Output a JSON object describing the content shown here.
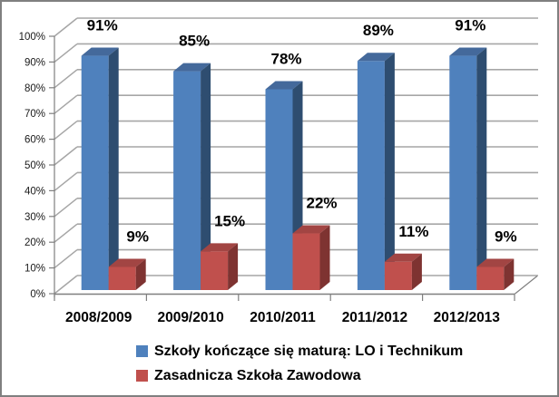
{
  "chart_data": {
    "type": "bar",
    "subtype": "3d-clustered-column",
    "title": "",
    "categories": [
      "2008/2009",
      "2009/2010",
      "2010/2011",
      "2011/2012",
      "2012/2013"
    ],
    "series": [
      {
        "name": "Szkoły kończące się maturą: LO i Technikum",
        "color": "#4F81BD",
        "color_side": "#2E4D70",
        "color_top": "#44699B",
        "values": [
          91,
          85,
          78,
          89,
          91
        ],
        "labels": [
          "91%",
          "85%",
          "78%",
          "89%",
          "91%"
        ]
      },
      {
        "name": "Zasadnicza Szkoła Zawodowa",
        "color": "#C0504D",
        "color_side": "#7E3331",
        "color_top": "#A24543",
        "values": [
          9,
          15,
          22,
          11,
          9
        ],
        "labels": [
          "9%",
          "15%",
          "22%",
          "11%",
          "9%"
        ]
      }
    ],
    "y_axis": {
      "min": 0,
      "max": 100,
      "step": 10,
      "ticks": [
        "0%",
        "10%",
        "20%",
        "30%",
        "40%",
        "50%",
        "60%",
        "70%",
        "80%",
        "90%",
        "100%"
      ]
    },
    "grid": true,
    "gridline_color": "#A6A6A6",
    "axis_color": "#7F7F7F",
    "label_color": "#000000",
    "legend_position": "bottom"
  }
}
